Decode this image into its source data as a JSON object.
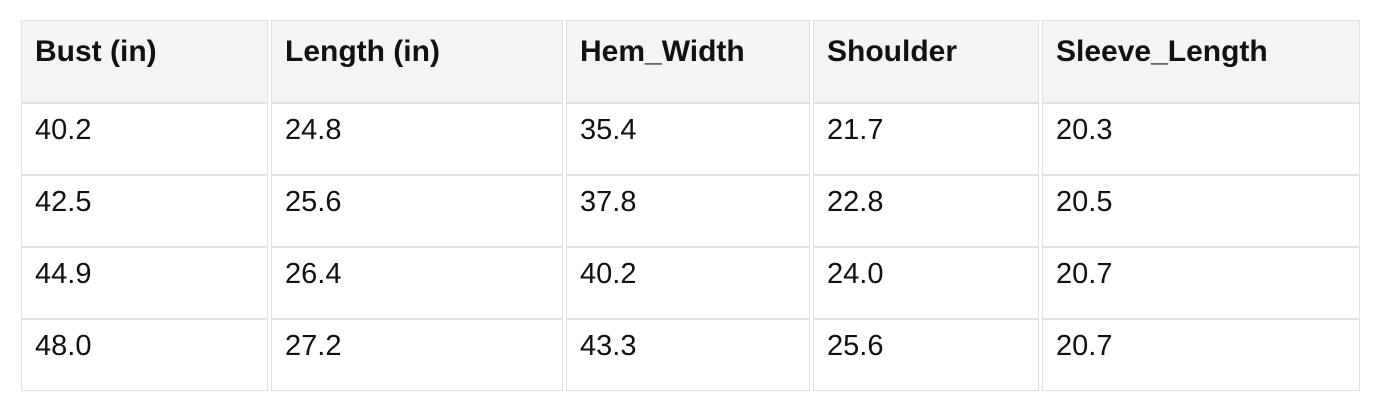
{
  "table": {
    "columns": [
      "Bust (in)",
      "Length (in)",
      "Hem_Width",
      "Shoulder",
      "Sleeve_Length"
    ],
    "rows": [
      [
        "40.2",
        "24.8",
        "35.4",
        "21.7",
        "20.3"
      ],
      [
        "42.5",
        "25.6",
        "37.8",
        "22.8",
        "20.5"
      ],
      [
        "44.9",
        "26.4",
        "40.2",
        "24.0",
        "20.7"
      ],
      [
        "48.0",
        "27.2",
        "43.3",
        "25.6",
        "20.7"
      ]
    ]
  },
  "colors": {
    "header_bg": "#f4f4f4",
    "cell_border": "#e1e1e1",
    "text": "#111111",
    "page_bg": "#ffffff"
  },
  "chart_data": {
    "type": "table",
    "title": "",
    "categories": [
      "Bust (in)",
      "Length (in)",
      "Hem_Width",
      "Shoulder",
      "Sleeve_Length"
    ],
    "series": [
      {
        "name": "Bust (in)",
        "values": [
          40.2,
          42.5,
          44.9,
          48.0
        ]
      },
      {
        "name": "Length (in)",
        "values": [
          24.8,
          25.6,
          26.4,
          27.2
        ]
      },
      {
        "name": "Hem_Width",
        "values": [
          35.4,
          37.8,
          40.2,
          43.3
        ]
      },
      {
        "name": "Shoulder",
        "values": [
          21.7,
          22.8,
          24.0,
          25.6
        ]
      },
      {
        "name": "Sleeve_Length",
        "values": [
          20.3,
          20.5,
          20.7,
          20.7
        ]
      }
    ]
  }
}
